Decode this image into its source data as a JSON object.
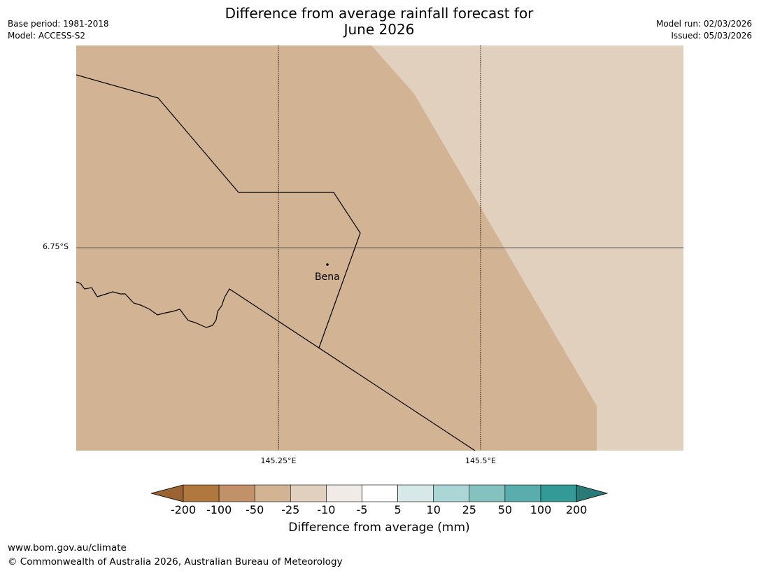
{
  "header": {
    "title_line1": "Difference from average rainfall forecast for",
    "title_line2": "June 2026",
    "base_period": "Base period: 1981-2018",
    "model": "Model: ACCESS-S2",
    "model_run": "Model run: 02/03/2026",
    "issued": "Issued: 05/03/2026"
  },
  "map": {
    "latitude_label": "6.75°S",
    "longitude_labels": [
      "145.25°E",
      "145.5°E"
    ],
    "places": [
      {
        "name": "Bena"
      }
    ],
    "fill_colors": {
      "main": "#d2b394",
      "light": "#e2d0bf"
    }
  },
  "legend": {
    "label": "Difference from average (mm)",
    "ticks": [
      "-200",
      "-100",
      "-50",
      "-25",
      "-10",
      "-5",
      "5",
      "10",
      "25",
      "50",
      "100",
      "200"
    ],
    "colors": [
      "#9a6331",
      "#b0773e",
      "#c19269",
      "#d2b394",
      "#e2d0bf",
      "#f0ebe7",
      "#ffffff",
      "#d6e8e8",
      "#acd6d5",
      "#84c2bf",
      "#5aadad",
      "#339a98",
      "#2a7a78"
    ]
  },
  "footer": {
    "url": "www.bom.gov.au/climate",
    "copyright": "© Commonwealth of Australia 2026, Australian Bureau of Meteorology"
  }
}
